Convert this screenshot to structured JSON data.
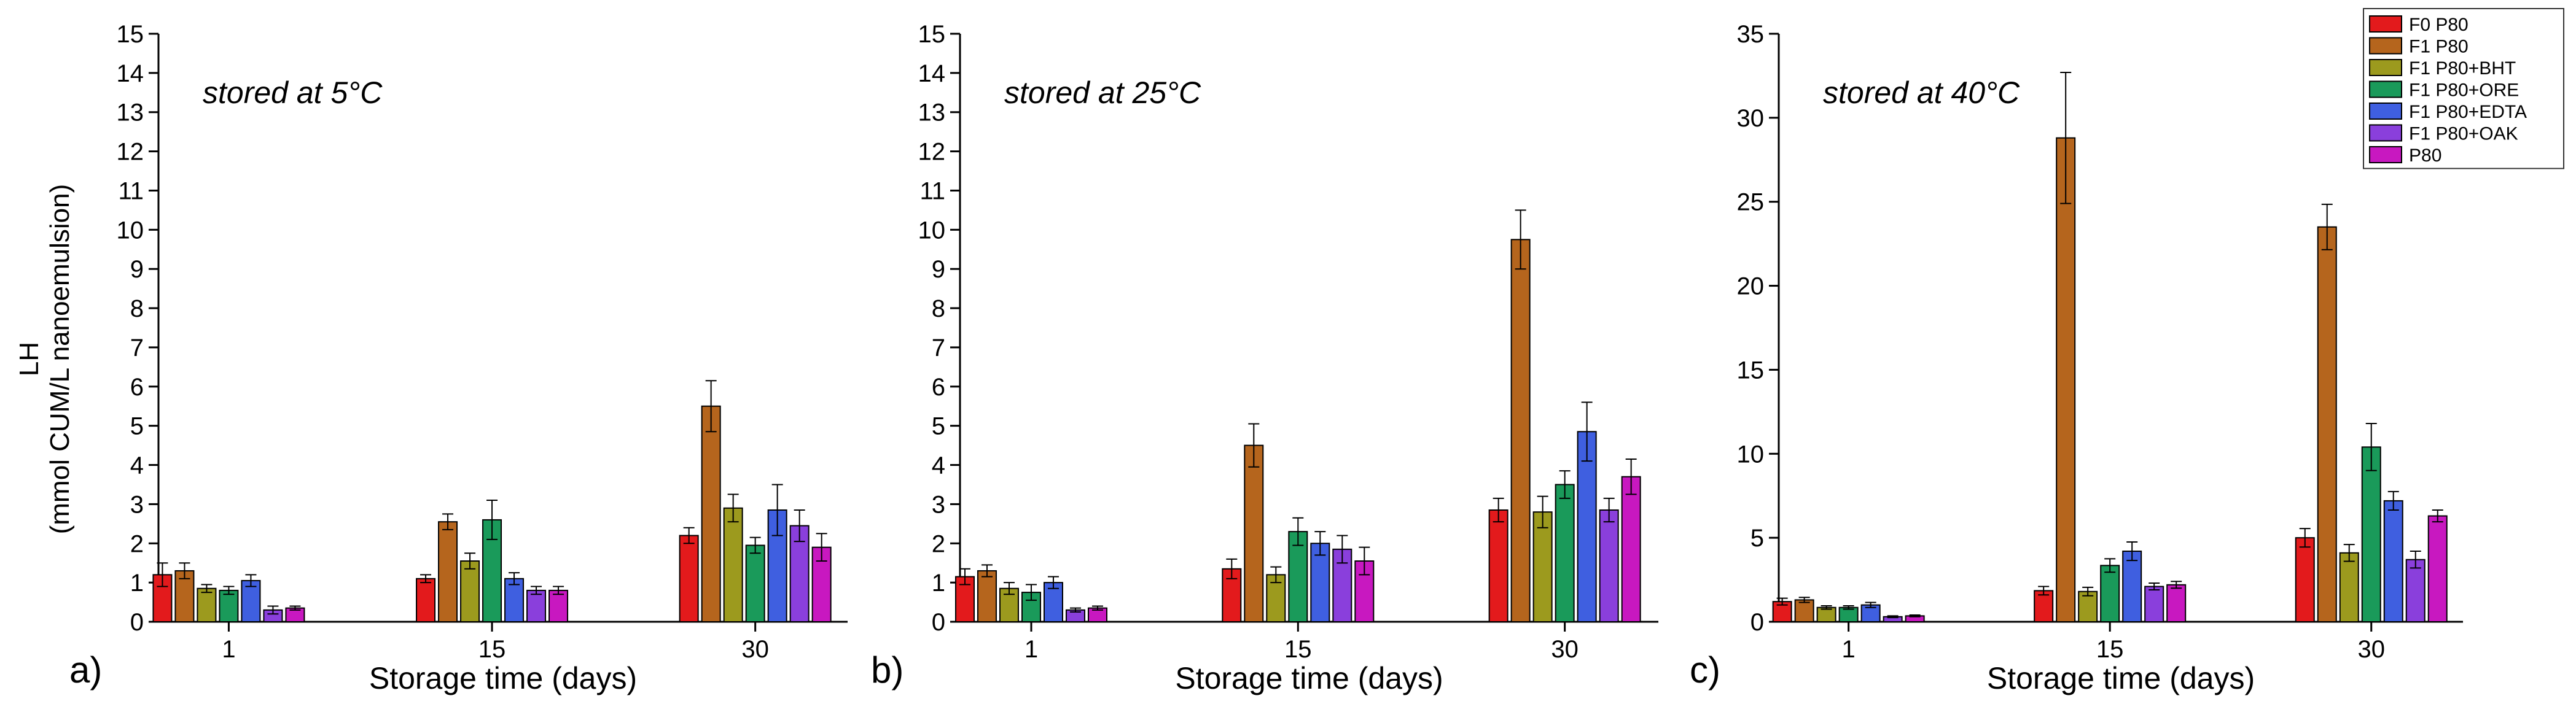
{
  "figure": {
    "ylabel_line1": "LH",
    "ylabel_line2": "(mmol CUM/L nanoemulsion)"
  },
  "legend": [
    "F0 P80",
    "F1 P80",
    "F1 P80+BHT",
    "F1 P80+ORE",
    "F1 P80+EDTA",
    "F1 P80+OAK",
    "P80"
  ],
  "colors": [
    "#e31a1c",
    "#b5651d",
    "#9c9a1e",
    "#1a9a5a",
    "#3f5fe0",
    "#8a3fdc",
    "#c818c0"
  ],
  "chart_data": [
    {
      "type": "bar",
      "panel_label": "a)",
      "title": "stored at 5°C",
      "xlabel": "Storage time (days)",
      "categories": [
        "1",
        "15",
        "30"
      ],
      "ylim": [
        0,
        15
      ],
      "yticks": [
        "0",
        "1",
        "2",
        "3",
        "4",
        "5",
        "6",
        "7",
        "8",
        "9",
        "10",
        "11",
        "12",
        "13",
        "14",
        "15"
      ],
      "series": [
        {
          "name": "F0 P80",
          "values": [
            1.2,
            1.1,
            2.2
          ],
          "errors": [
            0.3,
            0.1,
            0.2
          ]
        },
        {
          "name": "F1 P80",
          "values": [
            1.3,
            2.55,
            5.5
          ],
          "errors": [
            0.2,
            0.2,
            0.65
          ]
        },
        {
          "name": "F1 P80+BHT",
          "values": [
            0.85,
            1.55,
            2.9
          ],
          "errors": [
            0.1,
            0.2,
            0.35
          ]
        },
        {
          "name": "F1 P80+ORE",
          "values": [
            0.8,
            2.6,
            1.95
          ],
          "errors": [
            0.1,
            0.5,
            0.2
          ]
        },
        {
          "name": "F1 P80+EDTA",
          "values": [
            1.05,
            1.1,
            2.85
          ],
          "errors": [
            0.15,
            0.15,
            0.65
          ]
        },
        {
          "name": "F1 P80+OAK",
          "values": [
            0.3,
            0.8,
            2.45
          ],
          "errors": [
            0.1,
            0.1,
            0.4
          ]
        },
        {
          "name": "P80",
          "values": [
            0.35,
            0.8,
            1.9
          ],
          "errors": [
            0.05,
            0.1,
            0.35
          ]
        }
      ]
    },
    {
      "type": "bar",
      "panel_label": "b)",
      "title": "stored at 25°C",
      "xlabel": "Storage time (days)",
      "categories": [
        "1",
        "15",
        "30"
      ],
      "ylim": [
        0,
        15
      ],
      "yticks": [
        "0",
        "1",
        "2",
        "3",
        "4",
        "5",
        "6",
        "7",
        "8",
        "9",
        "10",
        "11",
        "12",
        "13",
        "14",
        "15"
      ],
      "series": [
        {
          "name": "F0 P80",
          "values": [
            1.15,
            1.35,
            2.85
          ],
          "errors": [
            0.2,
            0.25,
            0.3
          ]
        },
        {
          "name": "F1 P80",
          "values": [
            1.3,
            4.5,
            9.75
          ],
          "errors": [
            0.15,
            0.55,
            0.75
          ]
        },
        {
          "name": "F1 P80+BHT",
          "values": [
            0.85,
            1.2,
            2.8
          ],
          "errors": [
            0.15,
            0.2,
            0.4
          ]
        },
        {
          "name": "F1 P80+ORE",
          "values": [
            0.75,
            2.3,
            3.5
          ],
          "errors": [
            0.2,
            0.35,
            0.35
          ]
        },
        {
          "name": "F1 P80+EDTA",
          "values": [
            1.0,
            2.0,
            4.85
          ],
          "errors": [
            0.15,
            0.3,
            0.75
          ]
        },
        {
          "name": "F1 P80+OAK",
          "values": [
            0.3,
            1.85,
            2.85
          ],
          "errors": [
            0.05,
            0.35,
            0.3
          ]
        },
        {
          "name": "P80",
          "values": [
            0.35,
            1.55,
            3.7
          ],
          "errors": [
            0.05,
            0.35,
            0.45
          ]
        }
      ]
    },
    {
      "type": "bar",
      "panel_label": "c)",
      "title": "stored at 40°C",
      "xlabel": "Storage time (days)",
      "categories": [
        "1",
        "15",
        "30"
      ],
      "ylim": [
        0,
        35
      ],
      "yticks": [
        "0",
        "5",
        "10",
        "15",
        "20",
        "25",
        "30",
        "35"
      ],
      "series": [
        {
          "name": "F0 P80",
          "values": [
            1.2,
            1.85,
            5.0
          ],
          "errors": [
            0.2,
            0.25,
            0.55
          ]
        },
        {
          "name": "F1 P80",
          "values": [
            1.3,
            28.8,
            23.5
          ],
          "errors": [
            0.15,
            3.9,
            1.35
          ]
        },
        {
          "name": "F1 P80+BHT",
          "values": [
            0.85,
            1.8,
            4.1
          ],
          "errors": [
            0.1,
            0.25,
            0.5
          ]
        },
        {
          "name": "F1 P80+ORE",
          "values": [
            0.85,
            3.35,
            10.4
          ],
          "errors": [
            0.1,
            0.4,
            1.4
          ]
        },
        {
          "name": "F1 P80+EDTA",
          "values": [
            1.0,
            4.2,
            7.2
          ],
          "errors": [
            0.15,
            0.55,
            0.55
          ]
        },
        {
          "name": "F1 P80+OAK",
          "values": [
            0.3,
            2.1,
            3.7
          ],
          "errors": [
            0.05,
            0.2,
            0.5
          ]
        },
        {
          "name": "P80",
          "values": [
            0.35,
            2.2,
            6.3
          ],
          "errors": [
            0.05,
            0.2,
            0.35
          ]
        }
      ]
    }
  ]
}
